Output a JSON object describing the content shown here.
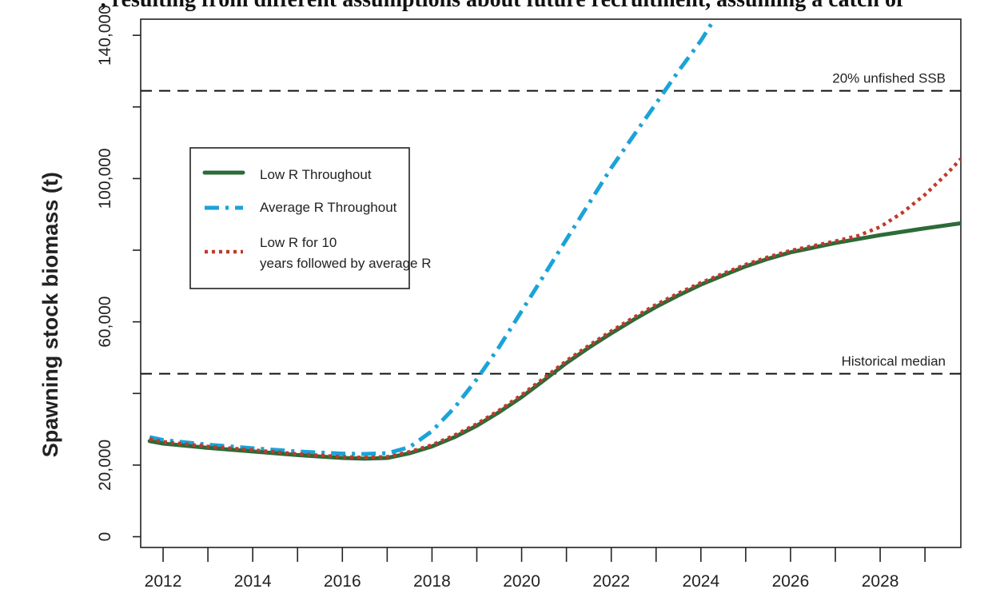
{
  "page": {
    "top_caption": ", resulting from different assumptions about future recruitment, assuming a catch of"
  },
  "chart_data": {
    "type": "line",
    "title": "",
    "xlabel": "",
    "ylabel": "Spawning stock biomass (t)",
    "xlim": [
      2011.5,
      2029.8
    ],
    "ylim": [
      -3000,
      144500
    ],
    "x_ticks_major": [
      2012,
      2014,
      2016,
      2018,
      2020,
      2022,
      2024,
      2026,
      2028
    ],
    "x_ticks_minor": [
      2013,
      2015,
      2017,
      2019,
      2021,
      2023,
      2025,
      2027,
      2029
    ],
    "y_ticks": [
      0,
      20000,
      40000,
      60000,
      80000,
      100000,
      120000,
      140000
    ],
    "y_tick_labels": [
      "0",
      "20,000",
      "",
      "60,000",
      "",
      "100,000",
      "",
      "140,000"
    ],
    "legend": {
      "position": "upper-left"
    },
    "series": [
      {
        "name": "Low R Throughout",
        "color": "#2d6a38",
        "style": "solid",
        "x": [
          2011.7,
          2012,
          2013,
          2014,
          2015,
          2016,
          2016.5,
          2017,
          2017.5,
          2018,
          2018.5,
          2019,
          2019.5,
          2020,
          2020.5,
          2021,
          2021.5,
          2022,
          2022.5,
          2023,
          2023.5,
          2024,
          2024.5,
          2025,
          2025.5,
          2026,
          2027,
          2028,
          2029,
          2029.8
        ],
        "y": [
          26700,
          26000,
          24800,
          23800,
          22800,
          22000,
          21800,
          22000,
          23300,
          25200,
          27800,
          31000,
          34800,
          39000,
          43700,
          48500,
          52800,
          56800,
          60600,
          64200,
          67400,
          70400,
          73000,
          75500,
          77600,
          79400,
          82000,
          84200,
          86100,
          87500
        ]
      },
      {
        "name": "Average R Throughout",
        "color": "#1ba3d8",
        "style": "dashdot",
        "x": [
          2011.7,
          2012,
          2013,
          2014,
          2015,
          2016,
          2016.5,
          2017,
          2017.5,
          2018,
          2018.5,
          2019,
          2019.5,
          2020,
          2020.5,
          2021,
          2021.5,
          2022,
          2022.5,
          2023,
          2023.5,
          2024,
          2024.3
        ],
        "y": [
          27800,
          27000,
          25700,
          24700,
          23800,
          23200,
          23100,
          23300,
          25000,
          29500,
          36000,
          44000,
          53000,
          63000,
          73000,
          83000,
          93000,
          103000,
          112000,
          121000,
          130000,
          138500,
          144500
        ]
      },
      {
        "name": "Low R for 10 years followed by average R",
        "color": "#c0392b",
        "style": "dotted",
        "x": [
          2011.7,
          2012,
          2013,
          2014,
          2015,
          2016,
          2016.5,
          2017,
          2017.5,
          2018,
          2018.5,
          2019,
          2019.5,
          2020,
          2020.5,
          2021,
          2021.5,
          2022,
          2022.5,
          2023,
          2023.5,
          2024,
          2024.5,
          2025,
          2025.5,
          2026,
          2027,
          2027.5,
          2028,
          2028.5,
          2029,
          2029.5,
          2029.8
        ],
        "y": [
          27300,
          26500,
          25200,
          24200,
          23100,
          22300,
          22100,
          22300,
          23700,
          25600,
          28300,
          31500,
          35300,
          39600,
          44300,
          49100,
          53400,
          57400,
          61200,
          64800,
          68000,
          70900,
          73500,
          76000,
          78100,
          79900,
          82500,
          84000,
          86500,
          90500,
          95500,
          101500,
          105500
        ]
      }
    ],
    "reference_lines": [
      {
        "label": "20% unfished SSB",
        "y": 124500
      },
      {
        "label": "Historical median",
        "y": 45500
      }
    ]
  }
}
